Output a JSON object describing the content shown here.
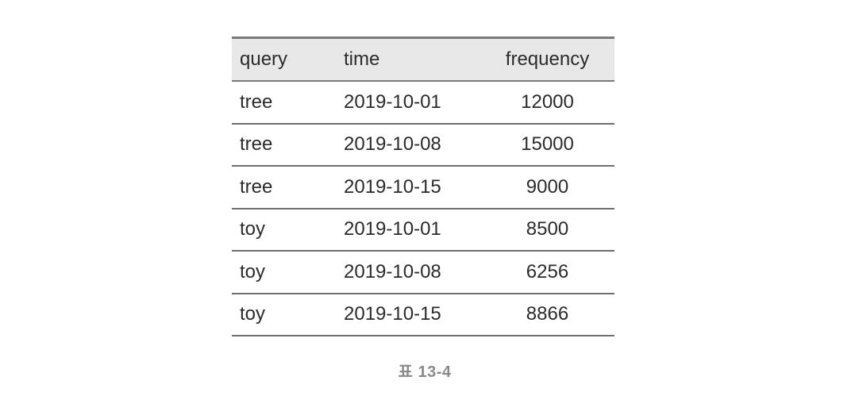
{
  "table": {
    "headers": [
      "query",
      "time",
      "frequency"
    ],
    "rows": [
      [
        "tree",
        "2019-10-01",
        "12000"
      ],
      [
        "tree",
        "2019-10-08",
        "15000"
      ],
      [
        "tree",
        "2019-10-15",
        "9000"
      ],
      [
        "toy",
        "2019-10-01",
        "8500"
      ],
      [
        "toy",
        "2019-10-08",
        "6256"
      ],
      [
        "toy",
        "2019-10-15",
        "8866"
      ]
    ]
  },
  "caption": "표 13-4"
}
